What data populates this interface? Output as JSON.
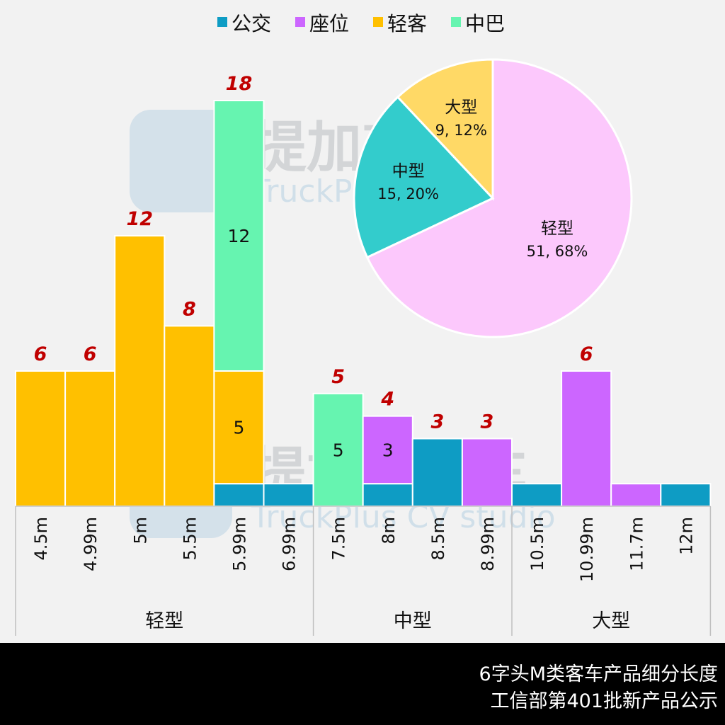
{
  "legend": [
    {
      "name": "公交",
      "color": "#0e9cc4"
    },
    {
      "name": "座位",
      "color": "#cc66ff"
    },
    {
      "name": "轻客",
      "color": "#ffc000"
    },
    {
      "name": "中巴",
      "color": "#66f4b0"
    }
  ],
  "watermark": {
    "cn": "提加商用车",
    "en": "TruckPlus CV studio"
  },
  "chart_data": [
    {
      "type": "bar",
      "stacked": true,
      "categories": [
        "4.5m",
        "4.99m",
        "5m",
        "5.5m",
        "5.99m",
        "6.99m",
        "7.5m",
        "8m",
        "8.5m",
        "8.99m",
        "10.5m",
        "10.99m",
        "11.7m",
        "12m"
      ],
      "groups": [
        {
          "label": "轻型",
          "count": 6
        },
        {
          "label": "中型",
          "count": 4
        },
        {
          "label": "大型",
          "count": 4
        }
      ],
      "series": [
        {
          "name": "公交",
          "color": "#0e9cc4",
          "values": [
            0,
            0,
            0,
            0,
            1,
            1,
            0,
            1,
            3,
            0,
            1,
            0,
            0,
            1
          ]
        },
        {
          "name": "座位",
          "color": "#cc66ff",
          "values": [
            0,
            0,
            0,
            0,
            0,
            0,
            0,
            3,
            0,
            3,
            0,
            6,
            1,
            0
          ]
        },
        {
          "name": "轻客",
          "color": "#ffc000",
          "values": [
            6,
            6,
            12,
            8,
            5,
            0,
            0,
            0,
            0,
            0,
            0,
            0,
            0,
            0
          ]
        },
        {
          "name": "中巴",
          "color": "#66f4b0",
          "values": [
            0,
            0,
            0,
            0,
            12,
            0,
            5,
            0,
            0,
            0,
            0,
            0,
            0,
            0
          ]
        }
      ],
      "segment_labels": [
        {
          "category": "5.99m",
          "series": "中巴",
          "text": "12"
        },
        {
          "category": "5.99m",
          "series": "轻客",
          "text": "5"
        },
        {
          "category": "7.5m",
          "series": "中巴",
          "text": "5"
        },
        {
          "category": "8m",
          "series": "座位",
          "text": "3"
        }
      ],
      "total_labels": [
        "6",
        "6",
        "12",
        "8",
        "18",
        null,
        "5",
        "4",
        "3",
        "3",
        null,
        "6",
        null,
        null
      ],
      "total_label_color": "#c00000",
      "ylim": [
        0,
        18
      ],
      "legend_position": "top",
      "grid": false
    },
    {
      "type": "pie",
      "slices": [
        {
          "label": "轻型",
          "value": 51,
          "percent": "68%",
          "text": "51, 68%",
          "color": "#fcc8fc"
        },
        {
          "label": "中型",
          "value": 15,
          "percent": "20%",
          "text": "15, 20%",
          "color": "#33cccc"
        },
        {
          "label": "大型",
          "value": 9,
          "percent": "12%",
          "text": "9, 12%",
          "color": "#ffd966"
        }
      ]
    }
  ],
  "footer": {
    "line1": "6字头M类客车产品细分长度",
    "line2": "工信部第401批新产品公示"
  }
}
